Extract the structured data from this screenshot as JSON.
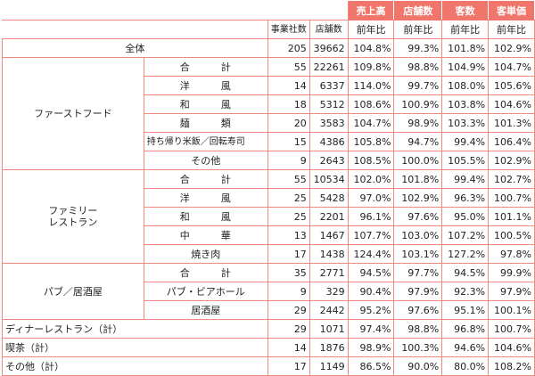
{
  "colors": {
    "header_bg": "#f0766b",
    "border": "#f08a7f"
  },
  "header": {
    "sales": "売上高",
    "stores": "店舗数",
    "customers": "客数",
    "unit_price": "客単価",
    "companies": "事業社数",
    "store_count": "店舗数",
    "yoy": "前年比"
  },
  "rows": {
    "total": {
      "label": "全体",
      "companies": "205",
      "stores": "39662",
      "sales": "104.8%",
      "store_yoy": "99.3%",
      "customers": "101.8%",
      "unit_price": "102.9%"
    },
    "ff": {
      "label": "ファーストフード",
      "sub": [
        {
          "label": "合　計",
          "companies": "55",
          "stores": "22261",
          "sales": "109.8%",
          "store_yoy": "98.8%",
          "customers": "104.9%",
          "unit_price": "104.7%"
        },
        {
          "label": "洋　風",
          "companies": "14",
          "stores": "6337",
          "sales": "114.0%",
          "store_yoy": "99.7%",
          "customers": "108.0%",
          "unit_price": "105.6%"
        },
        {
          "label": "和　風",
          "companies": "18",
          "stores": "5312",
          "sales": "108.6%",
          "store_yoy": "100.9%",
          "customers": "103.8%",
          "unit_price": "104.6%"
        },
        {
          "label": "麺　類",
          "companies": "20",
          "stores": "3583",
          "sales": "104.7%",
          "store_yoy": "98.9%",
          "customers": "103.3%",
          "unit_price": "101.3%"
        },
        {
          "label": "持ち帰り米飯／回転寿司",
          "companies": "15",
          "stores": "4386",
          "sales": "105.8%",
          "store_yoy": "94.7%",
          "customers": "99.4%",
          "unit_price": "106.4%"
        },
        {
          "label": "その他",
          "companies": "9",
          "stores": "2643",
          "sales": "108.5%",
          "store_yoy": "100.0%",
          "customers": "105.5%",
          "unit_price": "102.9%"
        }
      ]
    },
    "fr": {
      "label_1": "ファミリー",
      "label_2": "レストラン",
      "sub": [
        {
          "label": "合　計",
          "companies": "55",
          "stores": "10534",
          "sales": "102.0%",
          "store_yoy": "101.8%",
          "customers": "99.4%",
          "unit_price": "102.7%"
        },
        {
          "label": "洋　風",
          "companies": "25",
          "stores": "5428",
          "sales": "97.0%",
          "store_yoy": "102.9%",
          "customers": "96.3%",
          "unit_price": "100.7%"
        },
        {
          "label": "和　風",
          "companies": "25",
          "stores": "2201",
          "sales": "96.1%",
          "store_yoy": "97.6%",
          "customers": "95.0%",
          "unit_price": "101.1%"
        },
        {
          "label": "中　華",
          "companies": "13",
          "stores": "1467",
          "sales": "107.7%",
          "store_yoy": "103.0%",
          "customers": "107.2%",
          "unit_price": "100.5%"
        },
        {
          "label": "焼き肉",
          "companies": "17",
          "stores": "1438",
          "sales": "124.4%",
          "store_yoy": "103.1%",
          "customers": "127.2%",
          "unit_price": "97.8%"
        }
      ]
    },
    "pub": {
      "label": "パブ／居酒屋",
      "sub": [
        {
          "label": "合　計",
          "companies": "35",
          "stores": "2771",
          "sales": "94.5%",
          "store_yoy": "97.7%",
          "customers": "94.5%",
          "unit_price": "99.9%"
        },
        {
          "label": "パブ・ビアホール",
          "companies": "9",
          "stores": "329",
          "sales": "90.4%",
          "store_yoy": "97.9%",
          "customers": "92.3%",
          "unit_price": "97.9%"
        },
        {
          "label": "居酒屋",
          "companies": "29",
          "stores": "2442",
          "sales": "95.2%",
          "store_yoy": "97.6%",
          "customers": "95.1%",
          "unit_price": "100.1%"
        }
      ]
    },
    "dinner": {
      "label": "ディナーレストラン（計）",
      "companies": "29",
      "stores": "1071",
      "sales": "97.4%",
      "store_yoy": "98.8%",
      "customers": "96.8%",
      "unit_price": "100.7%"
    },
    "cafe": {
      "label": "喫茶（計）",
      "companies": "14",
      "stores": "1876",
      "sales": "98.9%",
      "store_yoy": "100.3%",
      "customers": "94.6%",
      "unit_price": "104.6%"
    },
    "other": {
      "label": "その他（計）",
      "companies": "17",
      "stores": "1149",
      "sales": "86.5%",
      "store_yoy": "90.0%",
      "customers": "80.0%",
      "unit_price": "108.2%"
    }
  }
}
